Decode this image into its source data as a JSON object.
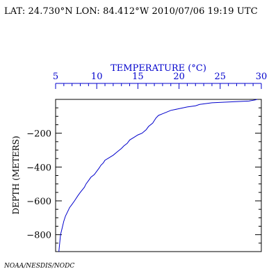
{
  "header": {
    "location_time": "LAT: 24.730°N LON: 84.412°W 2010/07/06 19:19 UTC"
  },
  "credit": "NOAA/NESDIS/NODC",
  "colors": {
    "top_axis": "#0000cc",
    "profile": "#0000cc",
    "frame": "#000000"
  },
  "chart_data": {
    "type": "line",
    "title": "",
    "xlabel": "TEMPERATURE (°C)",
    "ylabel": "DEPTH (METERS)",
    "x_axis_position": "top",
    "xlim": [
      5,
      30
    ],
    "ylim": [
      -900,
      0
    ],
    "x_ticks": [
      5,
      10,
      15,
      20,
      25,
      30
    ],
    "x_tick_labels": [
      "5",
      "10",
      "15",
      "20",
      "25",
      "30"
    ],
    "y_ticks": [
      -200,
      -400,
      -600,
      -800
    ],
    "y_tick_labels": [
      "−200",
      "−400",
      "−600",
      "−800"
    ],
    "grid": false,
    "series": [
      {
        "x": [
          29.5,
          29.3,
          28.5,
          26.0,
          24.0,
          22.5,
          22.0,
          21.0,
          20.0,
          19.0,
          18.5,
          18.0,
          17.5,
          17.2,
          17.0,
          16.8,
          16.3,
          16.0,
          15.5,
          15.0,
          14.5,
          14.0,
          13.7,
          13.3,
          13.0,
          12.5,
          12.0,
          11.5,
          11.0,
          10.8,
          10.5,
          10.3,
          10.0,
          9.7,
          9.3,
          9.0,
          8.7,
          8.5,
          8.0,
          7.7,
          7.3,
          7.0,
          6.7,
          6.5,
          6.2,
          6.0,
          5.8,
          5.6,
          5.5,
          5.4
        ],
        "y": [
          0,
          -3,
          -10,
          -15,
          -20,
          -30,
          -38,
          -45,
          -55,
          -65,
          -75,
          -85,
          -95,
          -110,
          -125,
          -140,
          -160,
          -180,
          -200,
          -210,
          -225,
          -240,
          -260,
          -275,
          -290,
          -310,
          -330,
          -345,
          -360,
          -375,
          -390,
          -405,
          -425,
          -445,
          -460,
          -480,
          -500,
          -520,
          -550,
          -570,
          -600,
          -620,
          -640,
          -660,
          -690,
          -720,
          -760,
          -800,
          -850,
          -900
        ]
      }
    ]
  }
}
